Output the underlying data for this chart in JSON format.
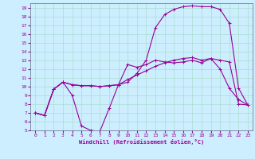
{
  "xlabel": "Windchill (Refroidissement éolien,°C)",
  "bg_color": "#cceeff",
  "line_color": "#990099",
  "grid_color": "#aaddcc",
  "xlim": [
    -0.5,
    23.5
  ],
  "ylim": [
    5,
    19.5
  ],
  "xticks": [
    0,
    1,
    2,
    3,
    4,
    5,
    6,
    7,
    8,
    9,
    10,
    11,
    12,
    13,
    14,
    15,
    16,
    17,
    18,
    19,
    20,
    21,
    22,
    23
  ],
  "yticks": [
    5,
    6,
    7,
    8,
    9,
    10,
    11,
    12,
    13,
    14,
    15,
    16,
    17,
    18,
    19
  ],
  "line1_x": [
    0,
    1,
    2,
    3,
    4,
    5,
    6,
    7,
    8,
    9,
    10,
    11,
    12,
    13,
    14,
    15,
    16,
    17,
    18,
    19,
    20,
    21,
    22,
    23
  ],
  "line1_y": [
    7.0,
    6.7,
    9.7,
    10.5,
    9.0,
    5.5,
    5.0,
    4.9,
    7.5,
    10.2,
    12.5,
    12.2,
    12.5,
    13.0,
    12.8,
    12.7,
    12.8,
    13.0,
    12.7,
    13.2,
    12.0,
    9.8,
    8.5,
    7.9
  ],
  "line2_x": [
    0,
    1,
    2,
    3,
    4,
    5,
    6,
    7,
    8,
    9,
    10,
    11,
    12,
    13,
    14,
    15,
    16,
    17,
    18,
    19,
    20,
    21,
    22,
    23
  ],
  "line2_y": [
    7.0,
    6.7,
    9.7,
    10.5,
    10.2,
    10.1,
    10.1,
    10.0,
    10.1,
    10.2,
    10.5,
    11.5,
    13.0,
    16.7,
    18.2,
    18.8,
    19.1,
    19.2,
    19.1,
    19.1,
    18.8,
    17.2,
    9.8,
    7.9
  ],
  "line3_x": [
    0,
    1,
    2,
    3,
    4,
    5,
    6,
    7,
    8,
    9,
    10,
    11,
    12,
    13,
    14,
    15,
    16,
    17,
    18,
    19,
    20,
    21,
    22,
    23
  ],
  "line3_y": [
    7.0,
    6.7,
    9.7,
    10.5,
    10.2,
    10.1,
    10.1,
    10.0,
    10.1,
    10.2,
    10.8,
    11.3,
    11.8,
    12.3,
    12.7,
    13.0,
    13.2,
    13.3,
    13.0,
    13.2,
    13.0,
    12.8,
    8.0,
    7.9
  ]
}
